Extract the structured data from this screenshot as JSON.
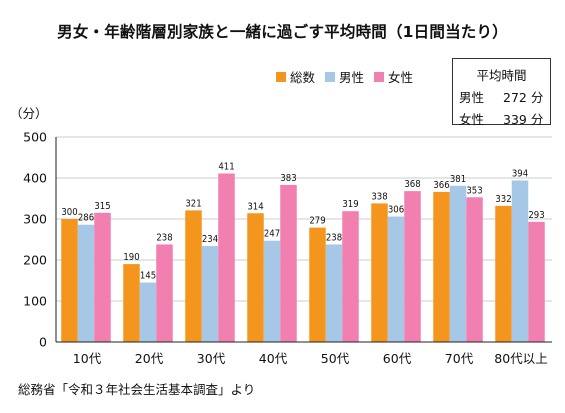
{
  "title": "男女・年齢階層別家族と一緒に過ごす平均時間（1日間当たり）",
  "unit_label": "（分）",
  "source": "総務省「令和３年社会生活基本調査」より",
  "legend": [
    {
      "name": "総数",
      "color": "#f4951d"
    },
    {
      "name": "男性",
      "color": "#a6c7e6"
    },
    {
      "name": "女性",
      "color": "#f17fb0"
    }
  ],
  "average_box": {
    "heading": "平均時間",
    "rows": [
      {
        "label": "男性",
        "value": "272 分"
      },
      {
        "label": "女性",
        "value": "339 分"
      }
    ]
  },
  "chart_data": {
    "type": "bar",
    "title": "男女・年齢階層別家族と一緒に過ごす平均時間（1日間当たり）",
    "ylabel": "（分）",
    "ylim": [
      0,
      500
    ],
    "yticks": [
      0,
      100,
      200,
      300,
      400,
      500
    ],
    "grid": true,
    "legend_position": "top-right",
    "categories": [
      "10代",
      "20代",
      "30代",
      "40代",
      "50代",
      "60代",
      "70代",
      "80代以上"
    ],
    "series": [
      {
        "name": "総数",
        "color": "#f4951d",
        "values": [
          300,
          190,
          321,
          314,
          279,
          338,
          366,
          332
        ]
      },
      {
        "name": "男性",
        "color": "#a6c7e6",
        "values": [
          286,
          145,
          234,
          247,
          238,
          306,
          381,
          394
        ]
      },
      {
        "name": "女性",
        "color": "#f17fb0",
        "values": [
          315,
          238,
          411,
          383,
          319,
          368,
          353,
          293
        ]
      }
    ]
  }
}
